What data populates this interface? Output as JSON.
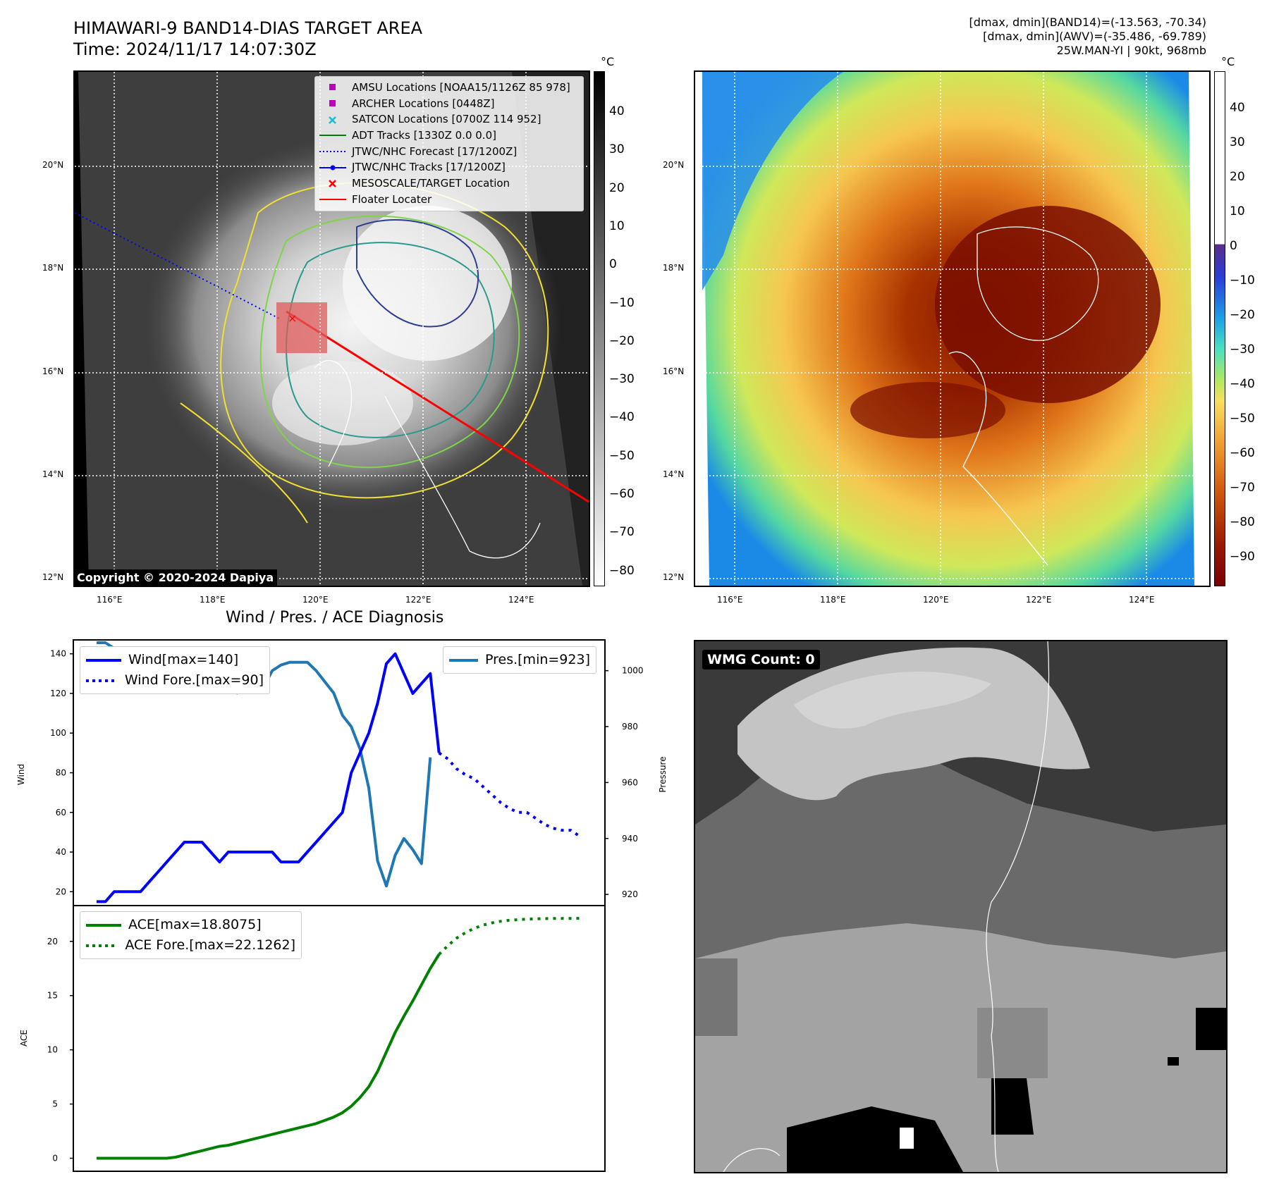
{
  "header": {
    "title": "HIMAWARI-9 BAND14-DIAS TARGET AREA",
    "time": "Time: 2024/11/17 14:07:30Z",
    "info_line1": "[dmax, dmin](BAND14)=(-13.563, -70.34)",
    "info_line2": "[dmax, dmin](AWV)=(-35.486, -69.789)",
    "info_line3": "25W.MAN-YI | 90kt, 968mb"
  },
  "map": {
    "lon_labels": [
      "116°E",
      "118°E",
      "120°E",
      "122°E",
      "124°E"
    ],
    "lat_labels": [
      "20°N",
      "18°N",
      "16°N",
      "14°N",
      "12°N"
    ],
    "copyright": "Copyright © 2020-2024 Dapiya",
    "legend": [
      {
        "label": "AMSU Locations [NOAA15/1126Z 85 978]",
        "color": "#c000c0",
        "marker": "square"
      },
      {
        "label": "ARCHER Locations [0448Z]",
        "color": "#c000c0",
        "marker": "square"
      },
      {
        "label": "SATCON Locations [0700Z 114 952]",
        "color": "#17becf",
        "marker": "x"
      },
      {
        "label": "ADT Tracks [1330Z 0.0 0.0]",
        "color": "#008000",
        "marker": "line"
      },
      {
        "label": "JTWC/NHC Forecast [17/1200Z]",
        "color": "#0000ff",
        "marker": "dotted"
      },
      {
        "label": "JTWC/NHC Tracks [17/1200Z]",
        "color": "#0000ff",
        "marker": "line-dot"
      },
      {
        "label": "MESOSCALE/TARGET Location",
        "color": "#ff0000",
        "marker": "x"
      },
      {
        "label": "Floater Locater",
        "color": "#ff0000",
        "marker": "line"
      }
    ]
  },
  "colorbar1": {
    "unit": "°C",
    "ticks": [
      "40",
      "30",
      "20",
      "10",
      "0",
      "−10",
      "−20",
      "−30",
      "−40",
      "−50",
      "−60",
      "−70",
      "−80"
    ]
  },
  "colorbar2": {
    "unit": "°C",
    "ticks": [
      "40",
      "30",
      "20",
      "10",
      "0",
      "−10",
      "−20",
      "−30",
      "−40",
      "−50",
      "−60",
      "−70",
      "−80",
      "−90"
    ]
  },
  "wmg": {
    "label": "WMG Count: 0"
  },
  "chart_data": [
    {
      "type": "line",
      "title": "Wind / Pres. / ACE Diagnosis",
      "ylabel": "Wind",
      "y2label": "Pressure",
      "ylim": [
        13,
        147
      ],
      "y2lim": [
        916,
        1011
      ],
      "yticks": [
        "20",
        "40",
        "60",
        "80",
        "100",
        "120",
        "140"
      ],
      "y2ticks": [
        "920",
        "940",
        "960",
        "980",
        "1000"
      ],
      "series": [
        {
          "name": "Wind[max=140]",
          "color": "#0000ff",
          "style": "solid",
          "values": [
            15,
            15,
            20,
            20,
            20,
            20,
            25,
            30,
            35,
            40,
            45,
            45,
            45,
            40,
            35,
            40,
            40,
            40,
            40,
            40,
            40,
            35,
            35,
            35,
            40,
            45,
            50,
            55,
            60,
            80,
            90,
            100,
            115,
            135,
            140,
            130,
            120,
            125,
            130,
            90
          ]
        },
        {
          "name": "Wind Fore.[max=90]",
          "color": "#0000ff",
          "style": "dotted",
          "values": [
            90,
            87,
            82,
            79,
            77,
            73,
            69,
            65,
            62,
            60,
            60,
            57,
            54,
            52,
            51,
            51,
            48
          ]
        },
        {
          "name": "Pres.[min=923]",
          "color": "#1f77b4",
          "style": "solid",
          "axis": "right",
          "values": [
            1010,
            1010,
            1008,
            1008,
            1008,
            1008,
            1007,
            1007,
            1004,
            1002,
            999,
            997,
            998,
            1000,
            996,
            996,
            992,
            994,
            995,
            994,
            1000,
            1002,
            1003,
            1003,
            1003,
            1000,
            996,
            992,
            984,
            980,
            972,
            958,
            932,
            923,
            934,
            940,
            936,
            931,
            969
          ]
        }
      ]
    },
    {
      "type": "line",
      "ylabel": "ACE",
      "ylim": [
        -1.2,
        23.3
      ],
      "yticks": [
        "0",
        "5",
        "10",
        "15",
        "20"
      ],
      "series": [
        {
          "name": "ACE[max=18.8075]",
          "color": "#008000",
          "style": "solid",
          "values": [
            0,
            0,
            0,
            0,
            0,
            0,
            0,
            0,
            0,
            0.1,
            0.3,
            0.5,
            0.7,
            0.9,
            1.1,
            1.2,
            1.4,
            1.6,
            1.8,
            2.0,
            2.2,
            2.4,
            2.6,
            2.8,
            3.0,
            3.2,
            3.5,
            3.8,
            4.2,
            4.8,
            5.6,
            6.6,
            8.0,
            9.8,
            11.6,
            13.1,
            14.5,
            16.0,
            17.5,
            18.8
          ]
        },
        {
          "name": "ACE Fore.[max=22.1262]",
          "color": "#008000",
          "style": "dotted",
          "values": [
            18.8,
            19.6,
            20.3,
            20.8,
            21.2,
            21.5,
            21.7,
            21.85,
            21.95,
            22.0,
            22.05,
            22.08,
            22.1,
            22.11,
            22.12,
            22.12,
            22.1262
          ]
        }
      ]
    }
  ]
}
